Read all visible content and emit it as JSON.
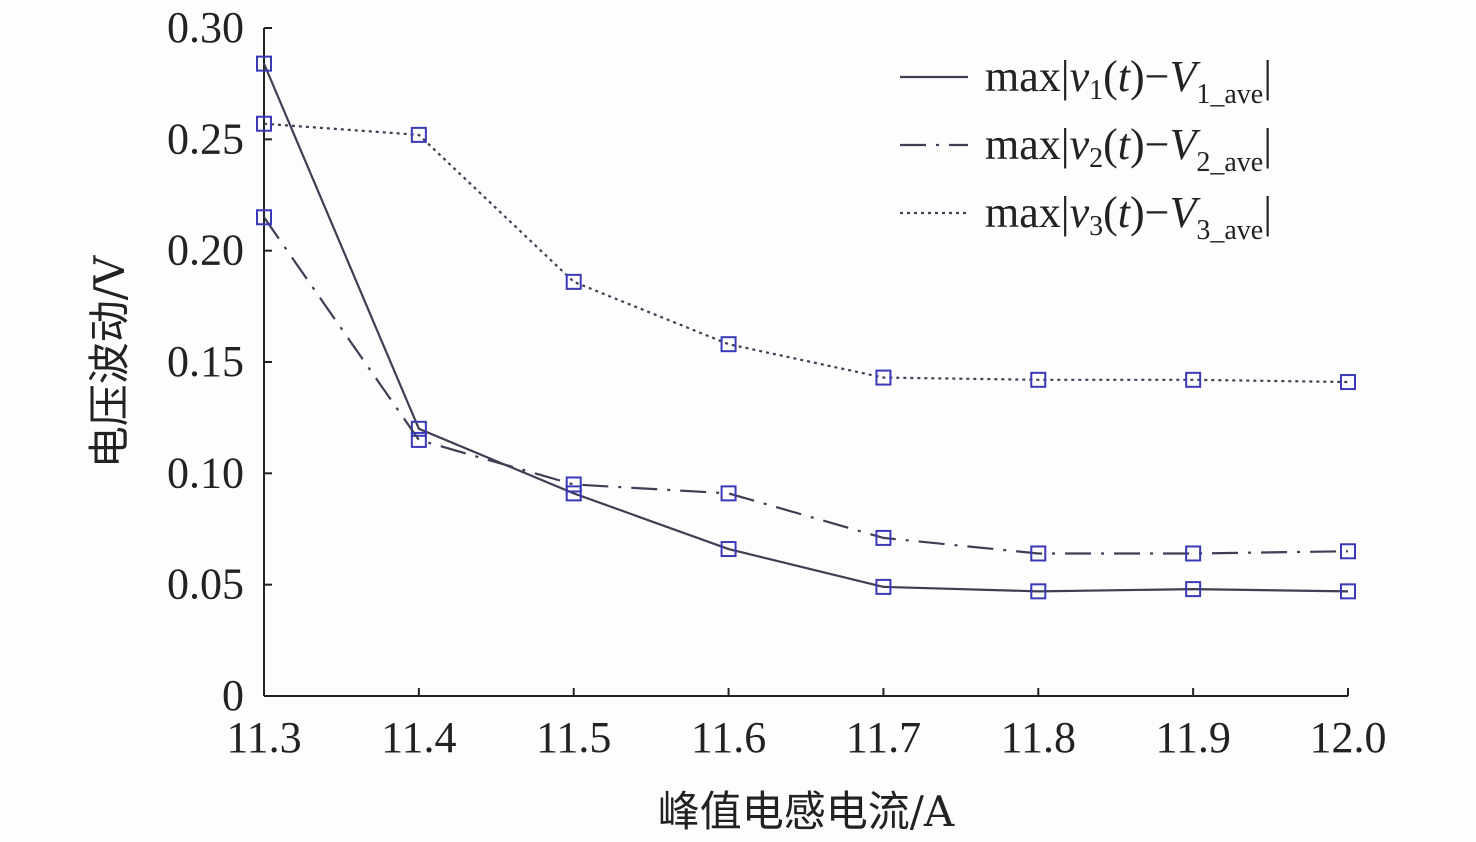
{
  "chart_data": {
    "type": "line",
    "title": "",
    "xlabel": "峰值电感电流/A",
    "ylabel": "电压波动/V",
    "x": [
      11.3,
      11.4,
      11.5,
      11.6,
      11.7,
      11.8,
      11.9,
      12.0
    ],
    "xlim": [
      11.3,
      12.0
    ],
    "ylim": [
      0,
      0.3
    ],
    "xticks": [
      "11.3",
      "11.4",
      "11.5",
      "11.6",
      "11.7",
      "11.8",
      "11.9",
      "12.0"
    ],
    "yticks": [
      "0",
      "0.05",
      "0.10",
      "0.15",
      "0.20",
      "0.25",
      "0.30"
    ],
    "grid": false,
    "legend_position": "top-right",
    "series": [
      {
        "name": "max|v1(t)−V1_ave|",
        "style": "solid",
        "values": [
          0.284,
          0.12,
          0.091,
          0.066,
          0.049,
          0.047,
          0.048,
          0.047
        ]
      },
      {
        "name": "max|v2(t)−V2_ave|",
        "style": "dashdot",
        "values": [
          0.215,
          0.115,
          0.095,
          0.091,
          0.071,
          0.064,
          0.064,
          0.065
        ]
      },
      {
        "name": "max|v3(t)−V3_ave|",
        "style": "dotted",
        "values": [
          0.257,
          0.252,
          0.186,
          0.158,
          0.143,
          0.142,
          0.142,
          0.141
        ]
      }
    ],
    "colors": {
      "line": "#3e3e55",
      "marker": "#3a3ab8",
      "axis": "#222222"
    }
  }
}
